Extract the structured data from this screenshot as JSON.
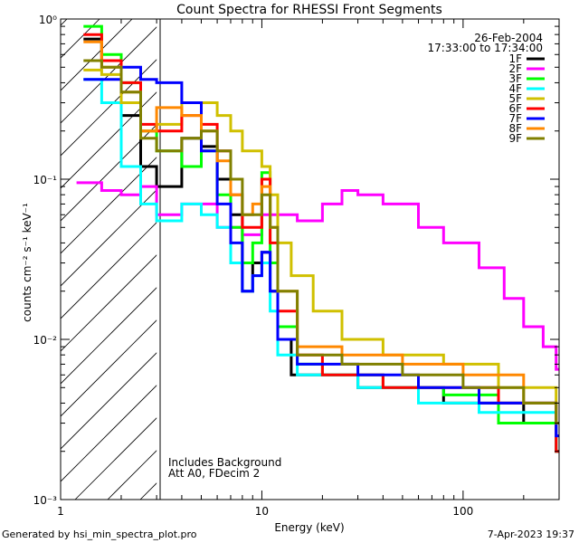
{
  "chart_data": {
    "type": "line",
    "title": "Count Spectra for RHESSI Front Segments",
    "xlabel": "Energy (keV)",
    "ylabel": "counts cm⁻² s⁻¹ keV⁻¹",
    "xscale": "log",
    "yscale": "log",
    "xlim": [
      1.0,
      300
    ],
    "ylim": [
      0.001,
      1.0
    ],
    "x_ticks": [
      "1",
      "10",
      "100"
    ],
    "y_ticks": [
      "10⁻³",
      "10⁻²",
      "10⁻¹",
      "10⁰"
    ],
    "date": "26-Feb-2004",
    "time_range": "17:33:00 to 17:34:00",
    "annotations": [
      "Includes Background",
      "Att A0, FDecim 2"
    ],
    "hatched_region_below_keV": 3.0,
    "footer_left": "Generated by hsi_min_spectra_plot.pro",
    "footer_right": "7-Apr-2023 19:37",
    "legend_position": "top-right",
    "series": [
      {
        "name": "1F",
        "color": "#000000",
        "points": [
          [
            1.3,
            0.75
          ],
          [
            1.6,
            0.55
          ],
          [
            2.0,
            0.25
          ],
          [
            2.5,
            0.12
          ],
          [
            3.0,
            0.09
          ],
          [
            4.0,
            0.18
          ],
          [
            5.0,
            0.16
          ],
          [
            6.0,
            0.1
          ],
          [
            7.0,
            0.06
          ],
          [
            8.0,
            0.02
          ],
          [
            9.0,
            0.03
          ],
          [
            10.0,
            0.035
          ],
          [
            11.0,
            0.02
          ],
          [
            12.0,
            0.01
          ],
          [
            14.0,
            0.006
          ],
          [
            20.0,
            0.006
          ],
          [
            30.0,
            0.005
          ],
          [
            50.0,
            0.005
          ],
          [
            80.0,
            0.004
          ],
          [
            120.0,
            0.004
          ],
          [
            200.0,
            0.003
          ],
          [
            290.0,
            0.002
          ]
        ]
      },
      {
        "name": "2F",
        "color": "#ff00ff",
        "points": [
          [
            1.2,
            0.095
          ],
          [
            1.6,
            0.085
          ],
          [
            2.0,
            0.08
          ],
          [
            2.5,
            0.09
          ],
          [
            3.0,
            0.06
          ],
          [
            4.0,
            0.07
          ],
          [
            6.0,
            0.05
          ],
          [
            8.0,
            0.045
          ],
          [
            10.0,
            0.06
          ],
          [
            15.0,
            0.055
          ],
          [
            20.0,
            0.07
          ],
          [
            25.0,
            0.085
          ],
          [
            30.0,
            0.08
          ],
          [
            40.0,
            0.07
          ],
          [
            60.0,
            0.05
          ],
          [
            80.0,
            0.04
          ],
          [
            120.0,
            0.028
          ],
          [
            160.0,
            0.018
          ],
          [
            200.0,
            0.012
          ],
          [
            250.0,
            0.009
          ],
          [
            290.0,
            0.0065
          ]
        ]
      },
      {
        "name": "3F",
        "color": "#00ff00",
        "points": [
          [
            1.3,
            0.9
          ],
          [
            1.6,
            0.6
          ],
          [
            2.0,
            0.4
          ],
          [
            2.5,
            0.2
          ],
          [
            3.0,
            0.15
          ],
          [
            4.0,
            0.12
          ],
          [
            5.0,
            0.15
          ],
          [
            6.0,
            0.08
          ],
          [
            7.0,
            0.05
          ],
          [
            8.0,
            0.03
          ],
          [
            9.0,
            0.04
          ],
          [
            10.0,
            0.11
          ],
          [
            11.0,
            0.03
          ],
          [
            12.0,
            0.012
          ],
          [
            15.0,
            0.007
          ],
          [
            20.0,
            0.006
          ],
          [
            40.0,
            0.005
          ],
          [
            80.0,
            0.0045
          ],
          [
            150.0,
            0.003
          ],
          [
            290.0,
            0.002
          ]
        ]
      },
      {
        "name": "4F",
        "color": "#00ffff",
        "points": [
          [
            1.3,
            0.42
          ],
          [
            1.6,
            0.3
          ],
          [
            2.0,
            0.12
          ],
          [
            2.5,
            0.07
          ],
          [
            3.0,
            0.055
          ],
          [
            4.0,
            0.07
          ],
          [
            5.0,
            0.06
          ],
          [
            6.0,
            0.05
          ],
          [
            7.0,
            0.03
          ],
          [
            8.0,
            0.02
          ],
          [
            9.0,
            0.025
          ],
          [
            10.0,
            0.03
          ],
          [
            11.0,
            0.015
          ],
          [
            12.0,
            0.008
          ],
          [
            15.0,
            0.006
          ],
          [
            30.0,
            0.005
          ],
          [
            60.0,
            0.004
          ],
          [
            120.0,
            0.0035
          ],
          [
            290.0,
            0.002
          ]
        ]
      },
      {
        "name": "5F",
        "color": "#d0c000",
        "points": [
          [
            1.3,
            0.48
          ],
          [
            1.6,
            0.45
          ],
          [
            2.0,
            0.3
          ],
          [
            2.5,
            0.2
          ],
          [
            3.0,
            0.22
          ],
          [
            4.0,
            0.3
          ],
          [
            5.0,
            0.3
          ],
          [
            6.0,
            0.25
          ],
          [
            7.0,
            0.2
          ],
          [
            8.0,
            0.15
          ],
          [
            9.0,
            0.15
          ],
          [
            10.0,
            0.12
          ],
          [
            11.0,
            0.08
          ],
          [
            12.0,
            0.04
          ],
          [
            14.0,
            0.025
          ],
          [
            18.0,
            0.015
          ],
          [
            25.0,
            0.01
          ],
          [
            40.0,
            0.008
          ],
          [
            80.0,
            0.007
          ],
          [
            150.0,
            0.005
          ],
          [
            290.0,
            0.003
          ]
        ]
      },
      {
        "name": "6F",
        "color": "#ff0000",
        "points": [
          [
            1.3,
            0.8
          ],
          [
            1.6,
            0.55
          ],
          [
            2.0,
            0.4
          ],
          [
            2.5,
            0.22
          ],
          [
            3.0,
            0.2
          ],
          [
            4.0,
            0.25
          ],
          [
            5.0,
            0.22
          ],
          [
            6.0,
            0.15
          ],
          [
            7.0,
            0.08
          ],
          [
            8.0,
            0.05
          ],
          [
            9.0,
            0.05
          ],
          [
            10.0,
            0.1
          ],
          [
            11.0,
            0.04
          ],
          [
            12.0,
            0.015
          ],
          [
            15.0,
            0.008
          ],
          [
            20.0,
            0.006
          ],
          [
            40.0,
            0.005
          ],
          [
            80.0,
            0.005
          ],
          [
            150.0,
            0.004
          ],
          [
            290.0,
            0.002
          ]
        ]
      },
      {
        "name": "7F",
        "color": "#0000ff",
        "points": [
          [
            1.3,
            0.42
          ],
          [
            1.6,
            0.42
          ],
          [
            2.0,
            0.5
          ],
          [
            2.5,
            0.42
          ],
          [
            3.0,
            0.4
          ],
          [
            4.0,
            0.3
          ],
          [
            5.0,
            0.15
          ],
          [
            6.0,
            0.07
          ],
          [
            7.0,
            0.04
          ],
          [
            8.0,
            0.02
          ],
          [
            9.0,
            0.025
          ],
          [
            10.0,
            0.035
          ],
          [
            11.0,
            0.02
          ],
          [
            12.0,
            0.01
          ],
          [
            15.0,
            0.007
          ],
          [
            30.0,
            0.006
          ],
          [
            60.0,
            0.005
          ],
          [
            120.0,
            0.004
          ],
          [
            290.0,
            0.0025
          ]
        ]
      },
      {
        "name": "8F",
        "color": "#ff8800",
        "points": [
          [
            1.3,
            0.72
          ],
          [
            1.6,
            0.5
          ],
          [
            2.0,
            0.35
          ],
          [
            2.5,
            0.2
          ],
          [
            3.0,
            0.28
          ],
          [
            4.0,
            0.25
          ],
          [
            5.0,
            0.2
          ],
          [
            6.0,
            0.13
          ],
          [
            7.0,
            0.08
          ],
          [
            8.0,
            0.06
          ],
          [
            9.0,
            0.07
          ],
          [
            10.0,
            0.09
          ],
          [
            11.0,
            0.05
          ],
          [
            12.0,
            0.02
          ],
          [
            15.0,
            0.009
          ],
          [
            25.0,
            0.008
          ],
          [
            50.0,
            0.007
          ],
          [
            100.0,
            0.006
          ],
          [
            200.0,
            0.004
          ],
          [
            290.0,
            0.003
          ]
        ]
      },
      {
        "name": "9F",
        "color": "#808000",
        "points": [
          [
            1.3,
            0.55
          ],
          [
            1.6,
            0.5
          ],
          [
            2.0,
            0.35
          ],
          [
            2.5,
            0.18
          ],
          [
            3.0,
            0.15
          ],
          [
            4.0,
            0.18
          ],
          [
            5.0,
            0.2
          ],
          [
            6.0,
            0.15
          ],
          [
            7.0,
            0.1
          ],
          [
            8.0,
            0.06
          ],
          [
            9.0,
            0.06
          ],
          [
            10.0,
            0.08
          ],
          [
            11.0,
            0.05
          ],
          [
            12.0,
            0.02
          ],
          [
            15.0,
            0.008
          ],
          [
            25.0,
            0.007
          ],
          [
            50.0,
            0.006
          ],
          [
            100.0,
            0.005
          ],
          [
            200.0,
            0.004
          ],
          [
            290.0,
            0.003
          ]
        ]
      }
    ]
  }
}
